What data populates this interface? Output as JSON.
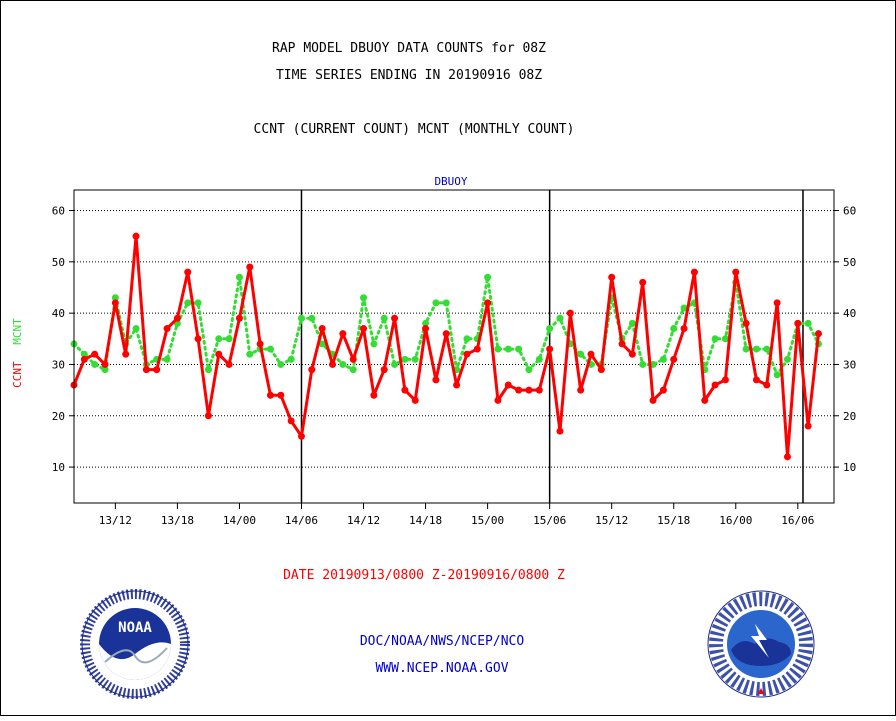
{
  "header": {
    "line1": "RAP MODEL DBUOY DATA COUNTS for 08Z",
    "line2": "TIME SERIES ENDING IN 20190916 08Z",
    "line3": "CCNT (CURRENT COUNT) MCNT (MONTHLY COUNT)"
  },
  "footer": {
    "date_range": "DATE 20190913/0800 Z-20190916/0800 Z",
    "org": "DOC/NOAA/NWS/NCEP/NCO",
    "url": "WWW.NCEP.NOAA.GOV"
  },
  "logos": {
    "noaa": {
      "label": "NOAA",
      "ring_text": "NATIONAL OCEANIC AND ATMOSPHERIC ADMINISTRATION • U.S. DEPARTMENT OF COMMERCE •"
    },
    "nws": {
      "ring_text": "NATIONAL WEATHER SERVICE"
    }
  },
  "colors": {
    "ccnt": "#ff0000",
    "mcnt": "#33dd33",
    "title": "#0000cc",
    "text": "#000000"
  },
  "chart_data": {
    "type": "line",
    "title": "DBUOY",
    "ylabel_parts": [
      {
        "text": "CCNT",
        "color": "#ff0000"
      },
      {
        "text": "MCNT",
        "color": "#33dd33"
      }
    ],
    "ylim": [
      3,
      64
    ],
    "yticks": [
      10,
      20,
      30,
      40,
      50,
      60
    ],
    "grid": true,
    "xlim": [
      0,
      73.5
    ],
    "xticks": [
      {
        "x": 4,
        "label": "13/12"
      },
      {
        "x": 10,
        "label": "13/18"
      },
      {
        "x": 16,
        "label": "14/00"
      },
      {
        "x": 22,
        "label": "14/06"
      },
      {
        "x": 28,
        "label": "14/12"
      },
      {
        "x": 34,
        "label": "14/18"
      },
      {
        "x": 40,
        "label": "15/00"
      },
      {
        "x": 46,
        "label": "15/06"
      },
      {
        "x": 52,
        "label": "15/12"
      },
      {
        "x": 58,
        "label": "15/18"
      },
      {
        "x": 64,
        "label": "16/00"
      },
      {
        "x": 70,
        "label": "16/06"
      }
    ],
    "day_boundaries": [
      22,
      46,
      70.5
    ],
    "series": [
      {
        "name": "CCNT",
        "values": [
          26,
          31,
          32,
          30,
          42,
          32,
          55,
          29,
          29,
          37,
          39,
          48,
          35,
          20,
          32,
          30,
          39,
          49,
          34,
          24,
          24,
          19,
          16,
          29,
          37,
          30,
          36,
          31,
          37,
          24,
          29,
          39,
          25,
          23,
          37,
          27,
          36,
          26,
          32,
          33,
          42,
          23,
          26,
          25,
          25,
          25,
          33,
          17,
          40,
          25,
          32,
          29,
          47,
          34,
          32,
          46,
          23,
          25,
          31,
          37,
          48,
          23,
          26,
          27,
          48,
          38,
          27,
          26,
          42,
          12,
          38,
          18,
          36
        ]
      },
      {
        "name": "MCNT",
        "values": [
          34,
          32,
          30,
          29,
          43,
          34,
          37,
          30,
          31,
          31,
          38,
          42,
          42,
          29,
          35,
          35,
          47,
          32,
          33,
          33,
          30,
          31,
          39,
          39,
          34,
          32,
          30,
          29,
          43,
          34,
          39,
          30,
          31,
          31,
          38,
          42,
          42,
          29,
          35,
          35,
          47,
          33,
          33,
          33,
          29,
          31,
          37,
          39,
          34,
          32,
          30,
          30,
          43,
          35,
          38,
          30,
          30,
          31,
          37,
          41,
          42,
          29,
          35,
          35,
          46,
          33,
          33,
          33,
          28,
          31,
          38,
          38,
          34
        ]
      }
    ]
  }
}
